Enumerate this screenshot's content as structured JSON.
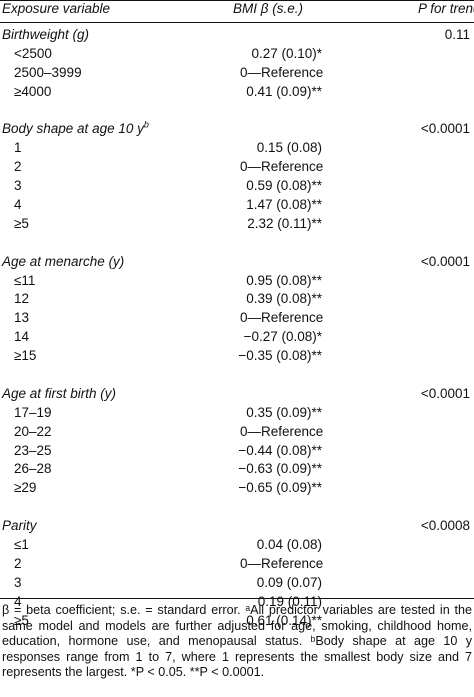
{
  "header": {
    "exposure": "Exposure variable",
    "bmi": "BMI β (s.e.)",
    "trend": "P for trend"
  },
  "sections": [
    {
      "title": "Birthweight (g)",
      "superscript": "",
      "trend": "0.11",
      "rows": [
        {
          "label": "<2500",
          "value": "0.27 (0.10)*"
        },
        {
          "label": "2500–3999",
          "value": "0—Reference",
          "ref": true
        },
        {
          "label": "≥4000",
          "value": "0.41 (0.09)**"
        }
      ]
    },
    {
      "title": "Body shape at age 10 y",
      "superscript": "b",
      "trend": "<0.0001",
      "rows": [
        {
          "label": "1",
          "value": "0.15 (0.08)"
        },
        {
          "label": "2",
          "value": "0—Reference",
          "ref": true
        },
        {
          "label": "3",
          "value": "0.59 (0.08)**"
        },
        {
          "label": "4",
          "value": "1.47 (0.08)**"
        },
        {
          "label": "≥5",
          "value": "2.32 (0.11)**"
        }
      ]
    },
    {
      "title": "Age at menarche (y)",
      "superscript": "",
      "trend": "<0.0001",
      "rows": [
        {
          "label": "≤11",
          "value": "0.95 (0.08)**"
        },
        {
          "label": "12",
          "value": "0.39 (0.08)**"
        },
        {
          "label": "13",
          "value": "0—Reference",
          "ref": true
        },
        {
          "label": "14",
          "value": "−0.27 (0.08)*"
        },
        {
          "label": "≥15",
          "value": "−0.35 (0.08)**"
        }
      ]
    },
    {
      "title": "Age at first birth (y)",
      "superscript": "",
      "trend": "<0.0001",
      "rows": [
        {
          "label": "17–19",
          "value": "0.35 (0.09)**"
        },
        {
          "label": "20–22",
          "value": "0—Reference",
          "ref": true
        },
        {
          "label": "23–25",
          "value": "−0.44 (0.08)**"
        },
        {
          "label": "26–28",
          "value": "−0.63 (0.09)**"
        },
        {
          "label": "≥29",
          "value": "−0.65 (0.09)**"
        }
      ]
    },
    {
      "title": "Parity",
      "superscript": "",
      "trend": "<0.0008",
      "rows": [
        {
          "label": "≤1",
          "value": "0.04 (0.08)"
        },
        {
          "label": "2",
          "value": "0—Reference",
          "ref": true
        },
        {
          "label": "3",
          "value": "0.09 (0.07)"
        },
        {
          "label": "4",
          "value": "0.19 (0.11)"
        },
        {
          "label": "≥5",
          "value": "0.61 (0.14)**"
        }
      ]
    }
  ],
  "footnote": "β = beta coefficient; s.e. = standard error. ᵃAll predictor variables are tested in the same model and models are further adjusted for age, smoking, childhood home, education, hormone use, and menopausal status. ᵇBody shape at age 10 y responses range from 1 to 7, where 1 represents the smallest body size and 7 represents the largest. *P < 0.05. **P < 0.0001."
}
